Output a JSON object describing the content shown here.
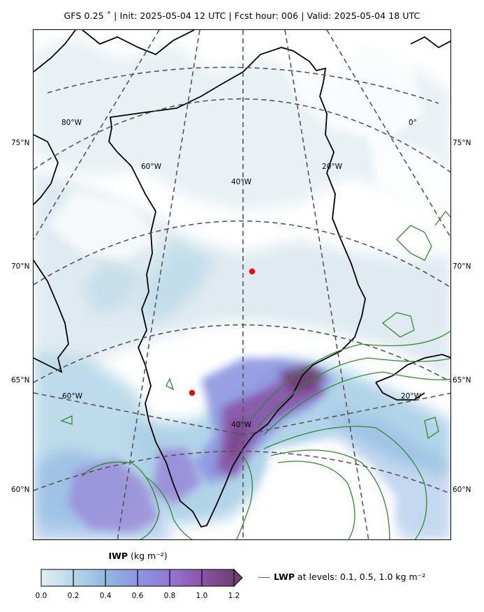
{
  "header": {
    "title": "GFS 0.25$^\\circ$  |  Init: 2025-05-04 12 UTC  |  Fcst hour: 006  |  Valid: 2025-05-04 18 UTC",
    "title_display": "GFS 0.25 ˚  |  Init: 2025-05-04 12 UTC  |  Fcst hour: 006  |  Valid: 2025-05-04 18 UTC"
  },
  "map": {
    "lat_labels_left": [
      "75°N",
      "70°N",
      "65°N",
      "60°N"
    ],
    "lat_labels_right": [
      "75°N",
      "70°N",
      "65°N",
      "60°N"
    ],
    "lon_labels": [
      "80°W",
      "60°W",
      "40°W",
      "20°W",
      "0°",
      "60°W",
      "40°W",
      "20°W"
    ],
    "markers": [
      {
        "name": "summit-marker",
        "color": "#ff0000"
      },
      {
        "name": "west-marker",
        "color": "#ff0000"
      }
    ],
    "colors": {
      "coastline": "#000000",
      "gridline": "#555555",
      "lwp_contour": "#2e8b2e",
      "marker": "#ff0000"
    }
  },
  "colorbar": {
    "label_bold": "IWP",
    "label_unit": " (kg m$^{-2}$)",
    "label_unit_display": "(kg m⁻²)",
    "ticks": [
      "0.0",
      "0.2",
      "0.4",
      "0.6",
      "0.8",
      "1.0",
      "1.2"
    ],
    "colors": [
      "#e4eff2",
      "#b6d7e8",
      "#93b8e4",
      "#8c96e0",
      "#9278d4",
      "#8a54a7",
      "#6f3f6f"
    ],
    "extend": "max"
  },
  "legend": {
    "label_bold": "LWP",
    "label_rest": " at levels: 0.1, 0.5, 1.0  kg m$^{-2}$",
    "label_rest_display": " at levels: 0.1, 0.5, 1.0  kg m⁻²"
  }
}
